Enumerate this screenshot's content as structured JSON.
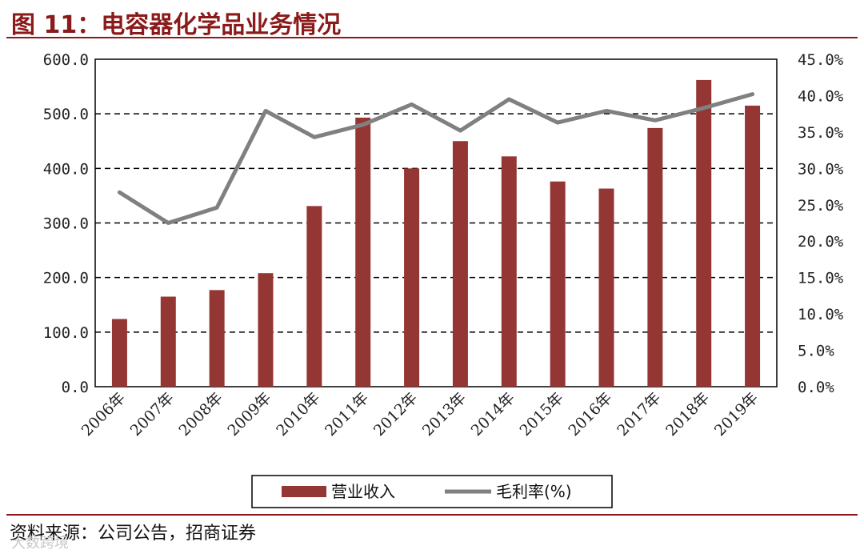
{
  "header": {
    "title": "图 11：电容器化学品业务情况"
  },
  "footer": {
    "source": "资料来源：公司公告，招商证券",
    "watermark": "大数跨境"
  },
  "colors": {
    "bar": "#943634",
    "line": "#808080",
    "accent": "#8b1a1a"
  },
  "chart_data": {
    "type": "bar",
    "categories": [
      "2006年",
      "2007年",
      "2008年",
      "2009年",
      "2010年",
      "2011年",
      "2012年",
      "2013年",
      "2014年",
      "2015年",
      "2016年",
      "2017年",
      "2018年",
      "2019年"
    ],
    "y_left_ticks": [
      "0.0",
      "100.0",
      "200.0",
      "300.0",
      "400.0",
      "500.0",
      "600.0"
    ],
    "y_right_ticks": [
      "0.0%",
      "5.0%",
      "10.0%",
      "15.0%",
      "20.0%",
      "25.0%",
      "30.0%",
      "35.0%",
      "40.0%",
      "45.0%"
    ],
    "ylim_left": [
      0,
      600
    ],
    "ylim_right": [
      0,
      45
    ],
    "grid": true,
    "legend_position": "bottom",
    "series": [
      {
        "name": "营业收入",
        "type": "bar",
        "axis": "left",
        "values": [
          124,
          165,
          177,
          208,
          331,
          493,
          400,
          450,
          422,
          376,
          363,
          474,
          562,
          515
        ]
      },
      {
        "name": "毛利率(%)",
        "type": "line",
        "axis": "right",
        "values": [
          26.7,
          22.5,
          24.6,
          37.9,
          34.3,
          36.0,
          38.8,
          35.2,
          39.5,
          36.3,
          37.9,
          36.6,
          38.3,
          40.2
        ]
      }
    ]
  }
}
